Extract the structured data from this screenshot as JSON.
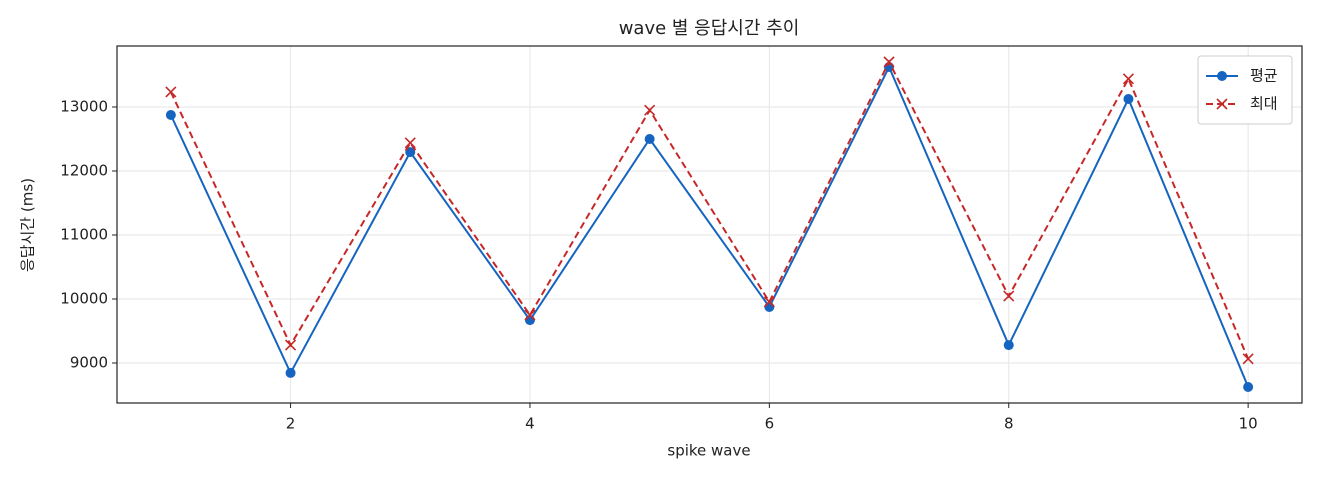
{
  "chart_data": {
    "type": "line",
    "title": "wave 별 응답시간 추이",
    "x_label": "spike wave",
    "y_label": "응답시간 (ms)",
    "x": [
      1,
      2,
      3,
      4,
      5,
      6,
      7,
      8,
      9,
      10
    ],
    "series": [
      {
        "name": "평균",
        "color": "#1565c0",
        "marker": "o",
        "linestyle": "solid",
        "values": [
          12875,
          8845,
          12295,
          9670,
          12500,
          9875,
          13625,
          9280,
          13125,
          8625
        ]
      },
      {
        "name": "최대",
        "color": "#c62828",
        "marker": "x",
        "linestyle": "dashed",
        "values": [
          13235,
          9280,
          12440,
          9750,
          12950,
          9955,
          13705,
          10045,
          13440,
          9065
        ]
      }
    ],
    "xlim": [
      0.55,
      10.45
    ],
    "xticks": [
      2,
      4,
      6,
      8,
      10
    ],
    "ylim": [
      8375,
      13953
    ],
    "yticks": [
      9000,
      10000,
      11000,
      12000,
      13000
    ],
    "grid": true,
    "legend": "upper right"
  }
}
